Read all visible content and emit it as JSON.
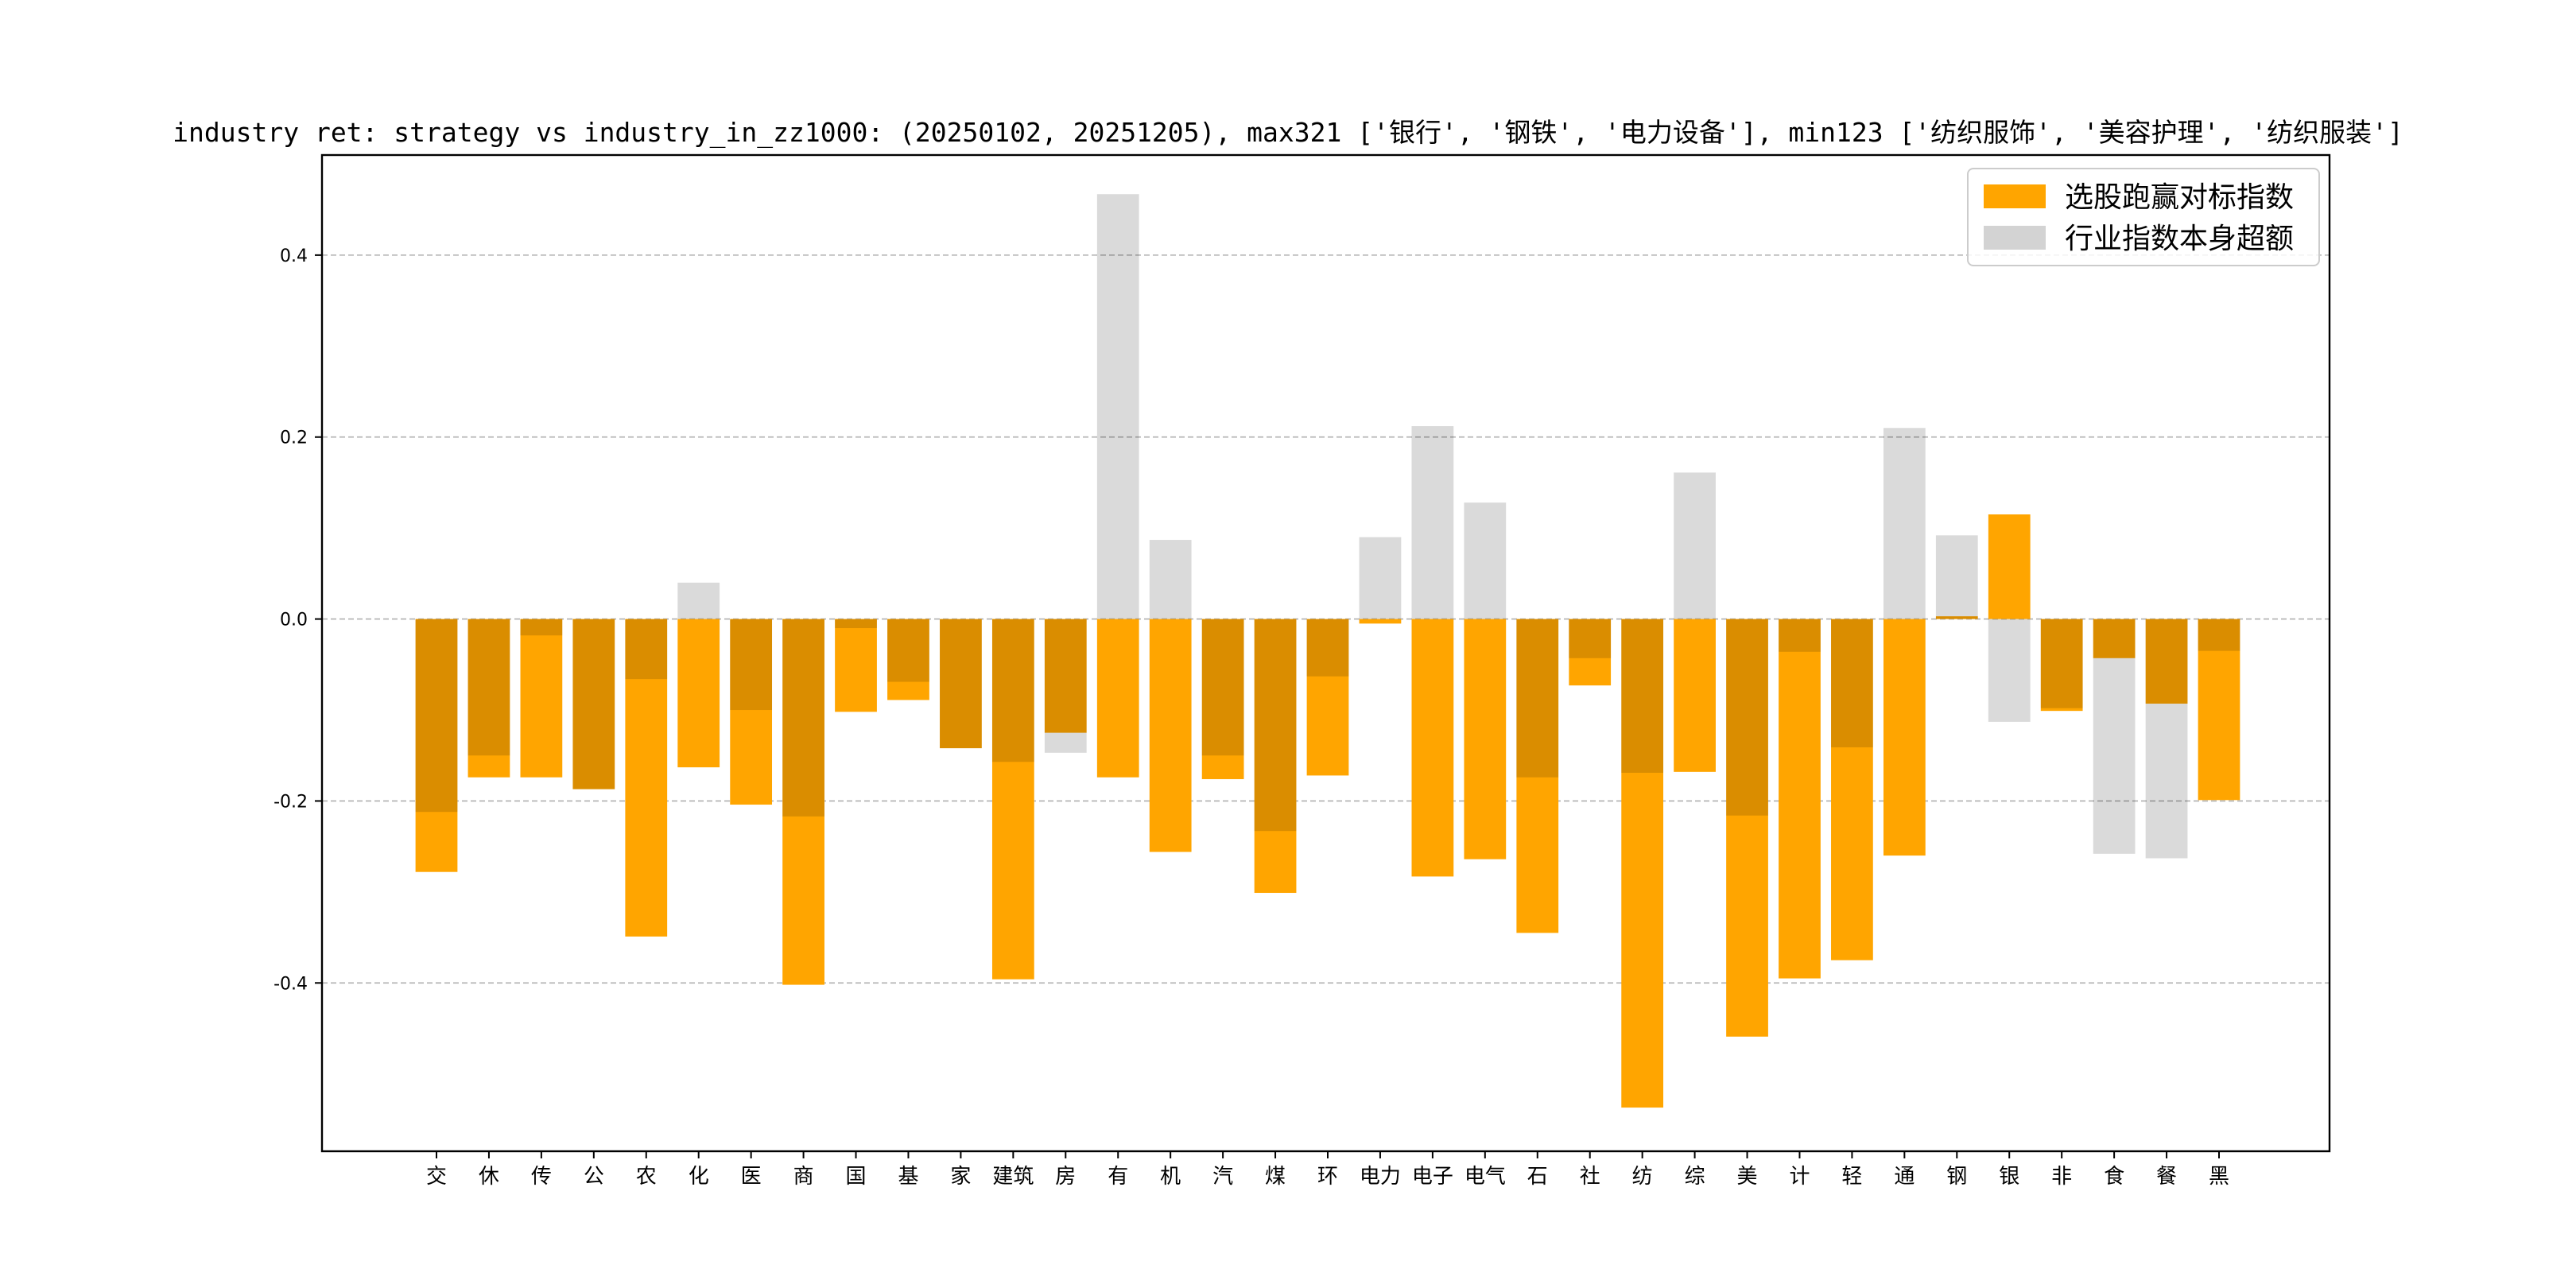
{
  "chart_data": {
    "type": "bar",
    "title": "industry ret: strategy vs industry_in_zz1000: (20250102, 20251205), max321 ['银行', '钢铁', '电力设备'], min123 ['纺织服饰', '美容护理', '纺织服装']",
    "xlabel": "",
    "ylabel": "",
    "ylim": [
      -0.585,
      0.51
    ],
    "yticks": [
      -0.4,
      -0.2,
      0.0,
      0.2,
      0.4
    ],
    "grid": "y-dashed",
    "legend_position": "top-right",
    "categories": [
      "交",
      "休",
      "传",
      "公",
      "农",
      "化",
      "医",
      "商",
      "国",
      "基",
      "家",
      "建筑",
      "房",
      "有",
      "机",
      "汽",
      "煤",
      "环",
      "电力",
      "电子",
      "电气",
      "石",
      "社",
      "纺",
      "综",
      "美",
      "计",
      "轻",
      "通",
      "钢",
      "银",
      "非",
      "食",
      "餐",
      "黑"
    ],
    "series": [
      {
        "name": "选股跑赢对标指数",
        "color": "#FFA500",
        "values": [
          -0.278,
          -0.174,
          -0.174,
          -0.187,
          -0.349,
          -0.163,
          -0.204,
          -0.402,
          -0.102,
          -0.089,
          -0.142,
          -0.396,
          -0.125,
          -0.174,
          -0.256,
          -0.176,
          -0.301,
          -0.172,
          -0.005,
          -0.283,
          -0.264,
          -0.345,
          -0.073,
          -0.537,
          -0.168,
          -0.459,
          -0.395,
          -0.375,
          -0.26,
          0.003,
          0.115,
          -0.101,
          -0.043,
          -0.093,
          -0.199
        ]
      },
      {
        "name": "行业指数本身超额",
        "color": "#D3D3D3",
        "values": [
          -0.212,
          -0.15,
          -0.018,
          -0.187,
          -0.066,
          0.04,
          -0.1,
          -0.217,
          -0.01,
          -0.069,
          -0.142,
          -0.157,
          -0.147,
          0.467,
          0.087,
          -0.15,
          -0.233,
          -0.063,
          0.09,
          0.212,
          0.128,
          -0.174,
          -0.043,
          -0.169,
          0.161,
          -0.216,
          -0.036,
          -0.141,
          0.21,
          0.092,
          -0.113,
          -0.098,
          -0.258,
          -0.263,
          -0.035
        ]
      }
    ]
  }
}
